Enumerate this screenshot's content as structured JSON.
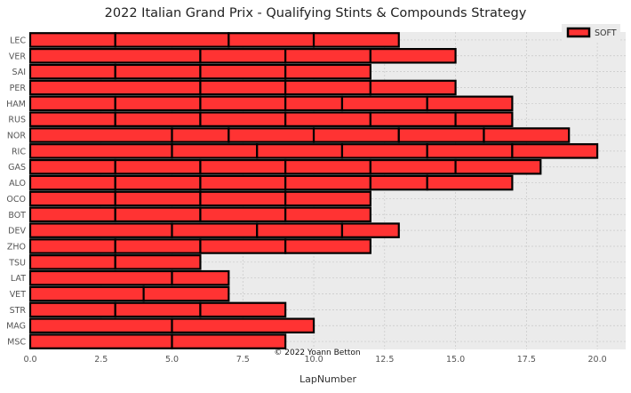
{
  "chart_data": {
    "type": "bar",
    "orientation": "horizontal",
    "stacked": true,
    "title": "2022 Italian Grand Prix - Qualifying Stints & Compounds Strategy",
    "xlabel": "LapNumber",
    "ylabel": "",
    "xlim": [
      0,
      21
    ],
    "x_ticks": [
      0.0,
      2.5,
      5.0,
      7.5,
      10.0,
      12.5,
      15.0,
      17.5,
      20.0
    ],
    "x_tick_labels": [
      "0.0",
      "2.5",
      "5.0",
      "7.5",
      "10.0",
      "12.5",
      "15.0",
      "17.5",
      "20.0"
    ],
    "grid": true,
    "legend": {
      "position": "top-right",
      "entries": [
        {
          "label": "SOFT",
          "color": "#ff3333"
        }
      ]
    },
    "annotation": "© 2022 Yoann Betton",
    "bar_color": "#ff3333",
    "edge_color": "#000000",
    "background_color": "#ebebeb",
    "drivers": [
      {
        "driver": "LEC",
        "stints": [
          3,
          4,
          3,
          3
        ]
      },
      {
        "driver": "VER",
        "stints": [
          6,
          3,
          3,
          3
        ]
      },
      {
        "driver": "SAI",
        "stints": [
          3,
          3,
          3,
          3
        ]
      },
      {
        "driver": "PER",
        "stints": [
          6,
          3,
          3,
          3
        ]
      },
      {
        "driver": "HAM",
        "stints": [
          3,
          3,
          3,
          2,
          3,
          3
        ]
      },
      {
        "driver": "RUS",
        "stints": [
          3,
          3,
          3,
          3,
          3,
          2
        ]
      },
      {
        "driver": "NOR",
        "stints": [
          5,
          2,
          3,
          3,
          3,
          3
        ]
      },
      {
        "driver": "RIC",
        "stints": [
          5,
          3,
          3,
          3,
          3,
          3
        ]
      },
      {
        "driver": "GAS",
        "stints": [
          3,
          3,
          3,
          3,
          3,
          3
        ]
      },
      {
        "driver": "ALO",
        "stints": [
          3,
          3,
          3,
          3,
          2,
          3
        ]
      },
      {
        "driver": "OCO",
        "stints": [
          3,
          3,
          3,
          3
        ]
      },
      {
        "driver": "BOT",
        "stints": [
          3,
          3,
          3,
          3
        ]
      },
      {
        "driver": "DEV",
        "stints": [
          5,
          3,
          3,
          2
        ]
      },
      {
        "driver": "ZHO",
        "stints": [
          3,
          3,
          3,
          3
        ]
      },
      {
        "driver": "TSU",
        "stints": [
          3,
          3
        ]
      },
      {
        "driver": "LAT",
        "stints": [
          5,
          2
        ]
      },
      {
        "driver": "VET",
        "stints": [
          4,
          3
        ]
      },
      {
        "driver": "STR",
        "stints": [
          3,
          3,
          3
        ]
      },
      {
        "driver": "MAG",
        "stints": [
          5,
          5
        ]
      },
      {
        "driver": "MSC",
        "stints": [
          5,
          4
        ]
      }
    ]
  }
}
